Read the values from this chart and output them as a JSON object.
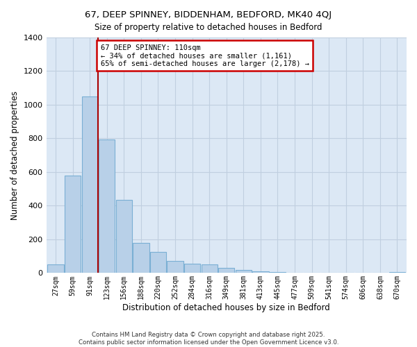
{
  "title": "67, DEEP SPINNEY, BIDDENHAM, BEDFORD, MK40 4QJ",
  "subtitle": "Size of property relative to detached houses in Bedford",
  "xlabel": "Distribution of detached houses by size in Bedford",
  "ylabel": "Number of detached properties",
  "bar_color": "#b8d0e8",
  "bar_edge_color": "#7aafd4",
  "background_color": "#ffffff",
  "plot_bg_color": "#dce8f5",
  "grid_color": "#c0cfe0",
  "categories": [
    "27sqm",
    "59sqm",
    "91sqm",
    "123sqm",
    "156sqm",
    "188sqm",
    "220sqm",
    "252sqm",
    "284sqm",
    "316sqm",
    "349sqm",
    "381sqm",
    "413sqm",
    "445sqm",
    "477sqm",
    "509sqm",
    "541sqm",
    "574sqm",
    "606sqm",
    "638sqm",
    "670sqm"
  ],
  "values": [
    50,
    580,
    1050,
    795,
    435,
    180,
    125,
    70,
    55,
    50,
    30,
    20,
    10,
    5,
    2,
    1,
    0,
    0,
    0,
    0,
    5
  ],
  "ylim": [
    0,
    1400
  ],
  "yticks": [
    0,
    200,
    400,
    600,
    800,
    1000,
    1200,
    1400
  ],
  "vline_bin": 2,
  "vline_color": "#aa0000",
  "annotation_title": "67 DEEP SPINNEY: 110sqm",
  "annotation_line1": "← 34% of detached houses are smaller (1,161)",
  "annotation_line2": "65% of semi-detached houses are larger (2,178) →",
  "annotation_box_color": "#ffffff",
  "annotation_box_edge": "#cc0000",
  "footer1": "Contains HM Land Registry data © Crown copyright and database right 2025.",
  "footer2": "Contains public sector information licensed under the Open Government Licence v3.0."
}
